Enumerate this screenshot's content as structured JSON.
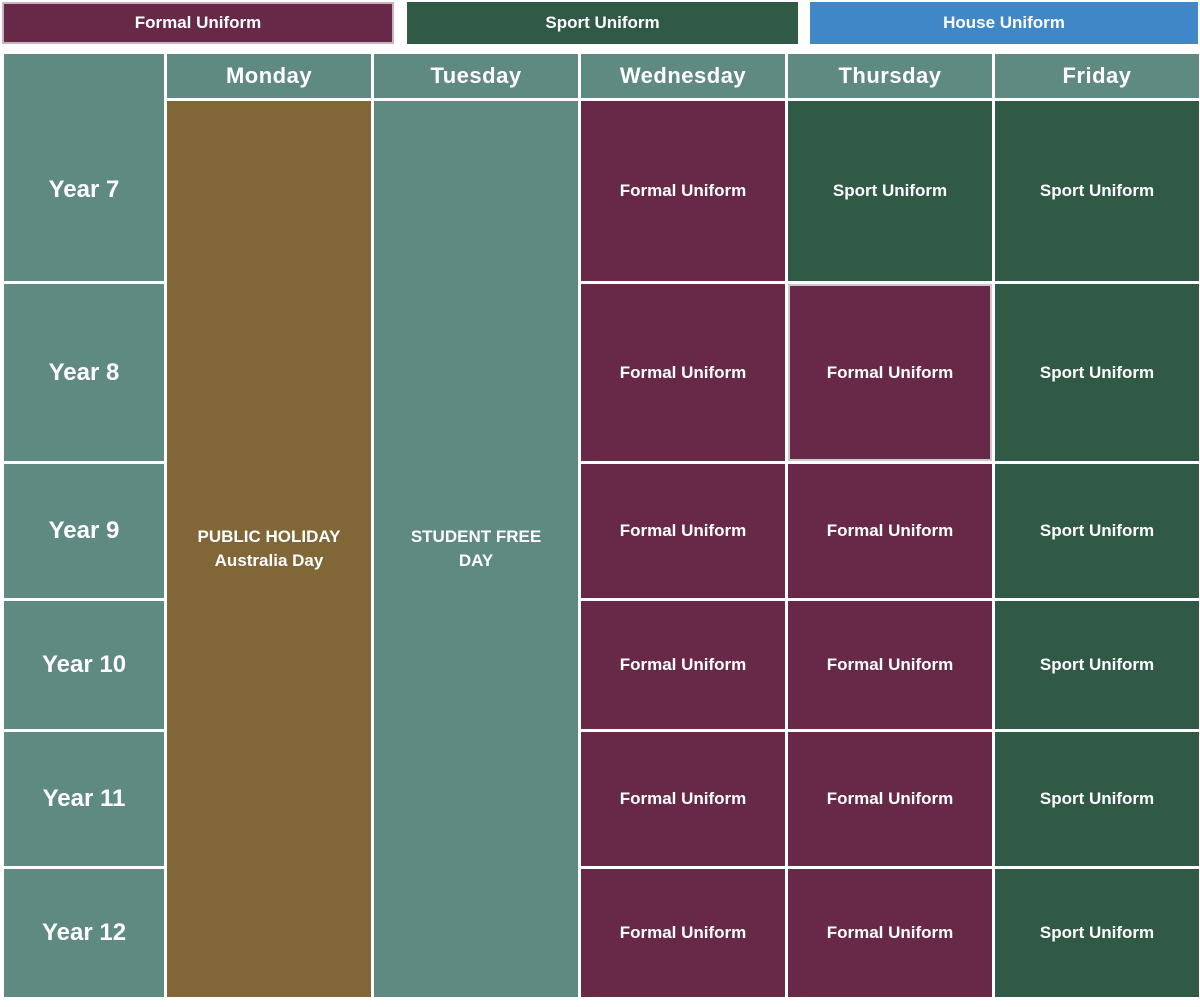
{
  "legend": {
    "formal": "Formal Uniform",
    "sport": "Sport Uniform",
    "house": "House Uniform"
  },
  "colors": {
    "formal": "#672947",
    "sport": "#305a45",
    "house": "#3f87c6",
    "header": "#5e8a82",
    "holiday": "#816638"
  },
  "days": [
    "Monday",
    "Tuesday",
    "Wednesday",
    "Thursday",
    "Friday"
  ],
  "years": [
    "Year 7",
    "Year 8",
    "Year 9",
    "Year 10",
    "Year 11",
    "Year 12"
  ],
  "monday": {
    "line1": "PUBLIC HOLIDAY",
    "line2": "Australia Day"
  },
  "tuesday": {
    "text": "STUDENT FREE DAY"
  },
  "wednesday": [
    "Formal Uniform",
    "Formal Uniform",
    "Formal Uniform",
    "Formal Uniform",
    "Formal Uniform",
    "Formal Uniform"
  ],
  "thursday": [
    "Sport Uniform",
    "Formal Uniform",
    "Formal Uniform",
    "Formal Uniform",
    "Formal Uniform",
    "Formal Uniform"
  ],
  "friday": [
    "Sport Uniform",
    "Sport Uniform",
    "Sport Uniform",
    "Sport Uniform",
    "Sport Uniform",
    "Sport Uniform"
  ]
}
